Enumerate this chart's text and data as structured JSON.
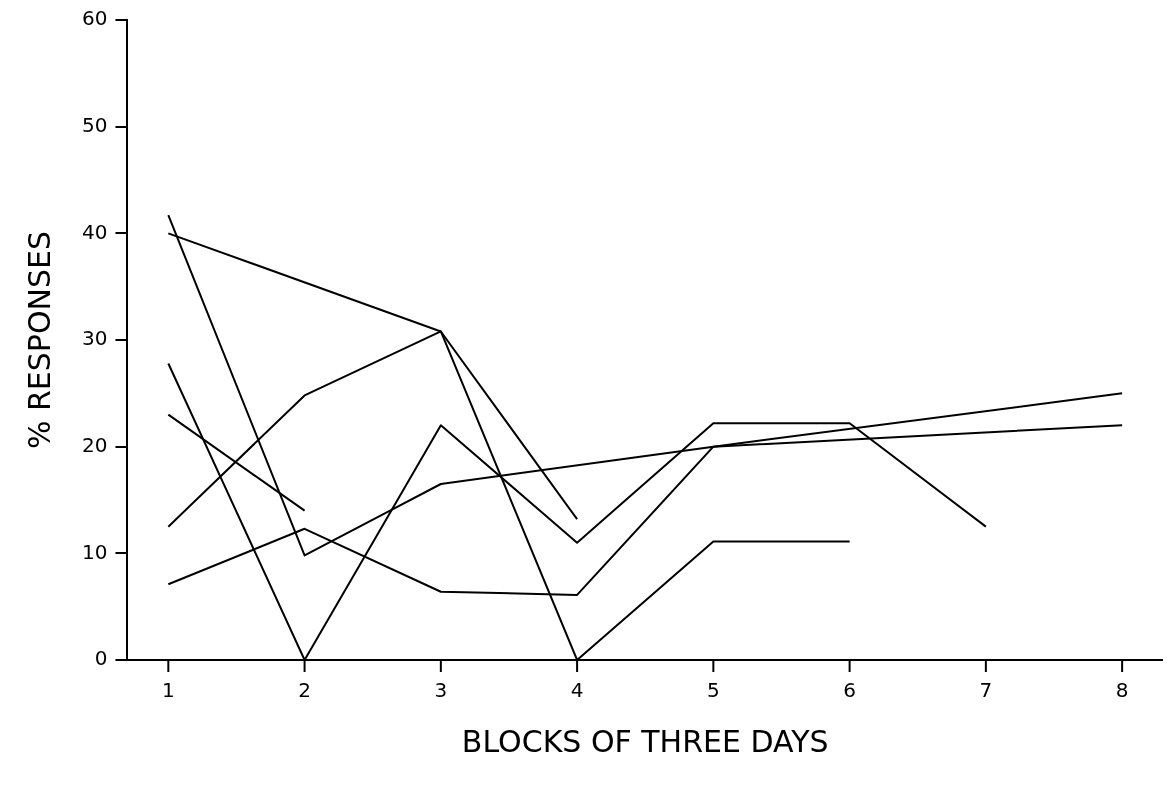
{
  "chart_data": {
    "type": "line",
    "xlabel": "BLOCKS OF THREE DAYS",
    "ylabel": "% RESPONSES",
    "x": [
      1,
      2,
      3,
      4,
      5,
      6,
      7,
      8
    ],
    "series": [
      {
        "color": "#000000",
        "values": [
          40,
          null,
          30.8,
          0,
          11.1,
          11.1,
          null,
          null
        ]
      },
      {
        "color": "#000000",
        "values": [
          41.7,
          9.8,
          16.5,
          null,
          20,
          null,
          null,
          25
        ]
      },
      {
        "color": "#000000",
        "values": [
          27.8,
          0,
          22,
          11,
          22.2,
          22.2,
          12.5,
          null
        ]
      },
      {
        "color": "#000000",
        "values": [
          12.5,
          24.8,
          30.8,
          13.2,
          null,
          null,
          null,
          null
        ]
      },
      {
        "color": "#000000",
        "values": [
          7.1,
          12.3,
          6.4,
          6.1,
          20,
          null,
          null,
          22
        ]
      },
      {
        "color": "#000000",
        "values": [
          23,
          14,
          null,
          null,
          null,
          null,
          null,
          null
        ]
      }
    ],
    "xlim": [
      0.7,
      8.3
    ],
    "xticks": [
      1,
      2,
      3,
      4,
      5,
      6,
      7,
      8
    ],
    "ylim": [
      0,
      60
    ],
    "yticks": [
      0,
      10,
      20,
      30,
      40,
      50,
      60
    ],
    "grid": false,
    "legend": false,
    "marker": "none",
    "line_style": "solid"
  }
}
